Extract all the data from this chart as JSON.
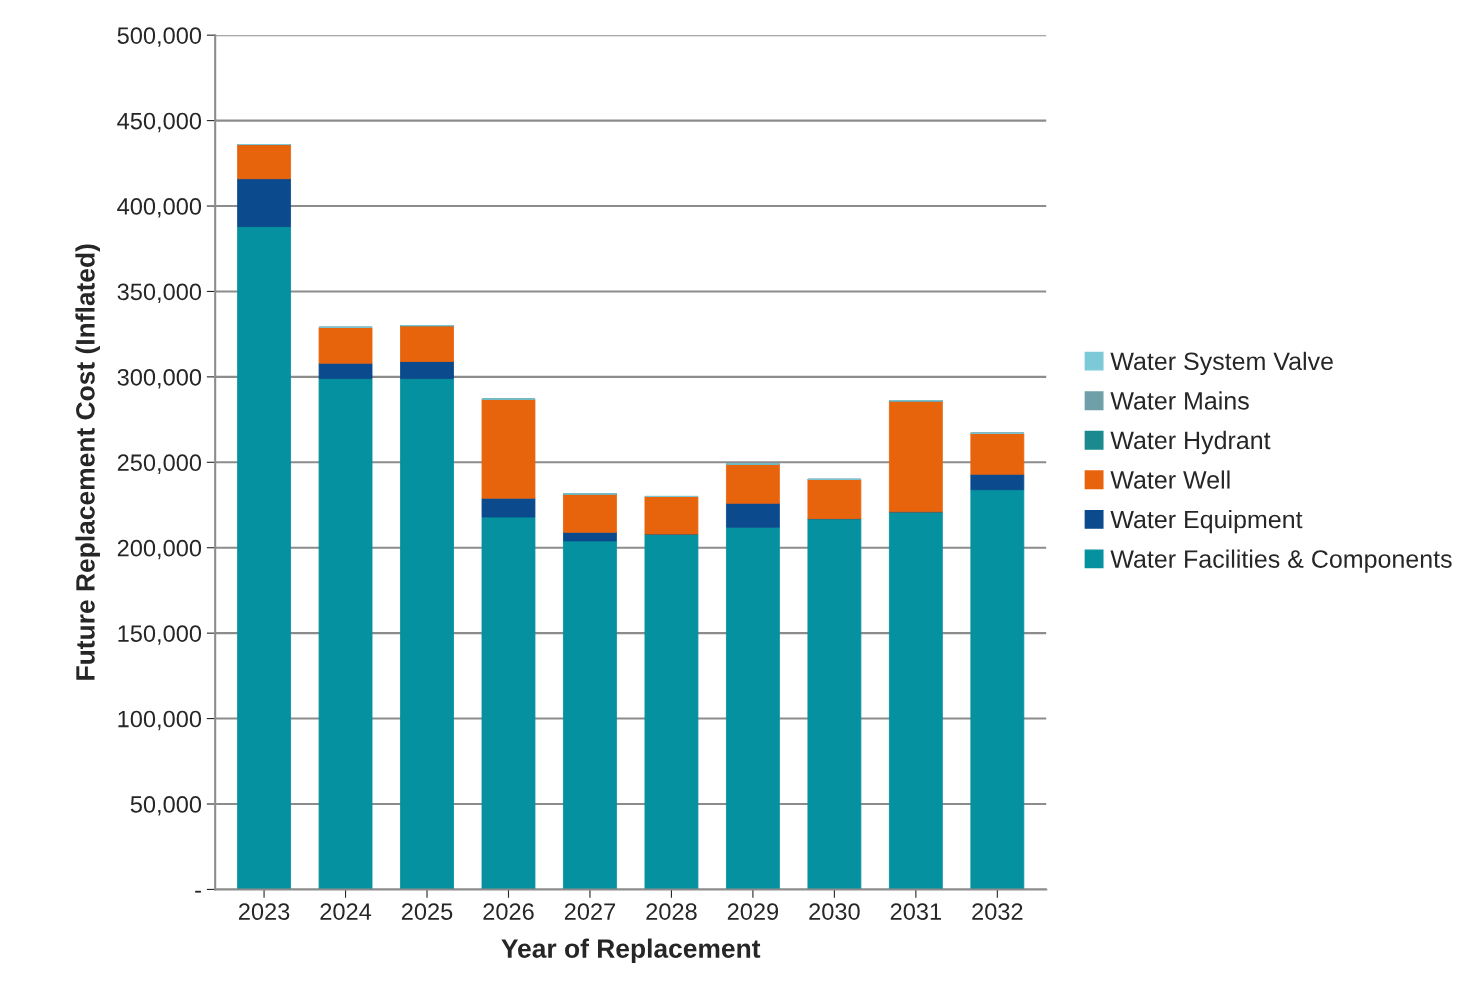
{
  "chart_data": {
    "type": "bar",
    "stacked": true,
    "xlabel": "Year of Replacement",
    "ylabel": "Future Replacement Cost (Inflated)",
    "categories": [
      "2023",
      "2024",
      "2025",
      "2026",
      "2027",
      "2028",
      "2029",
      "2030",
      "2031",
      "2032"
    ],
    "series": [
      {
        "name": "Water Facilities & Components",
        "color": "#05919f",
        "values": [
          388000,
          299000,
          299000,
          218000,
          204000,
          208000,
          212000,
          217000,
          221000,
          234000
        ]
      },
      {
        "name": "Water Equipment",
        "color": "#0b4a8c",
        "values": [
          28000,
          9000,
          10000,
          11000,
          5000,
          0,
          14000,
          0,
          0,
          9000
        ]
      },
      {
        "name": "Water Well",
        "color": "#e8640c",
        "values": [
          20000,
          21000,
          21000,
          58000,
          22500,
          22000,
          23000,
          23000,
          65000,
          24000
        ]
      },
      {
        "name": "Water Hydrant",
        "color": "#1a8a8f",
        "values": [
          0,
          0,
          0,
          0,
          0,
          0,
          0,
          0,
          0,
          0
        ]
      },
      {
        "name": "Water Mains",
        "color": "#6fa0aa",
        "values": [
          0,
          0,
          0,
          0,
          0,
          0,
          0,
          0,
          0,
          0
        ]
      },
      {
        "name": "Water System Valve",
        "color": "#7cc9d8",
        "values": [
          0,
          0,
          0,
          0,
          0,
          0,
          0,
          0,
          0,
          0
        ]
      }
    ],
    "ylim": [
      0,
      500000
    ],
    "yticks": [
      {
        "value": 0,
        "label": "-"
      },
      {
        "value": 50000,
        "label": "50,000"
      },
      {
        "value": 100000,
        "label": "100,000"
      },
      {
        "value": 150000,
        "label": "150,000"
      },
      {
        "value": 200000,
        "label": "200,000"
      },
      {
        "value": 250000,
        "label": "250,000"
      },
      {
        "value": 300000,
        "label": "300,000"
      },
      {
        "value": 350000,
        "label": "350,000"
      },
      {
        "value": 400000,
        "label": "400,000"
      },
      {
        "value": 450000,
        "label": "450,000"
      },
      {
        "value": 500000,
        "label": "500,000"
      }
    ],
    "grid": "y",
    "legend": "right"
  }
}
